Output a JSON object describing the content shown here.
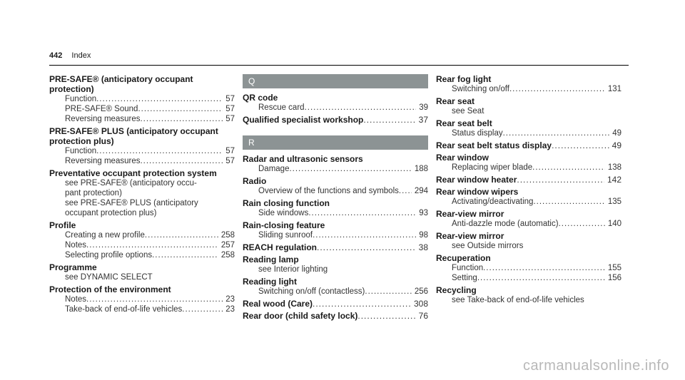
{
  "header": {
    "page_number": "442",
    "section": "Index"
  },
  "col1": {
    "e1_title": "PRE-SAFE® (anticipatory occupant protection)",
    "e1_r1": "Function",
    "e1_p1": "57",
    "e1_r2": "PRE-SAFE® Sound",
    "e1_p2": "57",
    "e1_r3": "Reversing measures",
    "e1_p3": "57",
    "e2_title1": "PRE-SAFE® PLUS (anticipatory occupant",
    "e2_title2": "protection plus)",
    "e2_r1": "Function",
    "e2_p1": "57",
    "e2_r2": "Reversing measures",
    "e2_p2": "57",
    "e3_title": "Preventative occupant protection system",
    "e3_s1": "see PRE-SAFE® (anticipatory occu-",
    "e3_s2": "pant protection)",
    "e3_s3": "see PRE-SAFE® PLUS (anticipatory",
    "e3_s4": "occupant protection plus)",
    "e4_title": "Profile",
    "e4_r1": "Creating a new profile",
    "e4_p1": "258",
    "e4_r2": "Notes",
    "e4_p2": "257",
    "e4_r3": "Selecting profile options",
    "e4_p3": "258",
    "e5_title": "Programme",
    "e5_s1": "see DYNAMIC SELECT",
    "e6_title": "Protection of the environment",
    "e6_r1": "Notes",
    "e6_p1": "23",
    "e6_r2": "Take-back of end-of-life vehicles",
    "e6_p2": "23"
  },
  "col2": {
    "letter_q": "Q",
    "q1_title": "QR code",
    "q1_r1": "Rescue card",
    "q1_p1": "39",
    "q2_title": "Qualified specialist workshop",
    "q2_p": "37",
    "letter_r": "R",
    "r1_title": "Radar and ultrasonic sensors",
    "r1_r1": "Damage",
    "r1_p1": "188",
    "r2_title": "Radio",
    "r2_r1": "Overview of the functions and symbols",
    "r2_p1": "294",
    "r3_title": "Rain closing function",
    "r3_r1": "Side windows",
    "r3_p1": "93",
    "r4_title": "Rain-closing feature",
    "r4_r1": "Sliding sunroof",
    "r4_p1": "98",
    "r5_title": "REACH regulation",
    "r5_p": "38",
    "r6_title": "Reading lamp",
    "r6_s1": "see Interior lighting",
    "r7_title": "Reading light",
    "r7_r1": "Switching on/off (contactless)",
    "r7_p1": "256",
    "r8_title": "Real wood (Care)",
    "r8_p": "308",
    "r9_title": "Rear door (child safety lock)",
    "r9_p": "76"
  },
  "col3": {
    "a1_title": "Rear fog light",
    "a1_r1": "Switching on/off",
    "a1_p1": "131",
    "a2_title": "Rear seat",
    "a2_s1": "see Seat",
    "a3_title": "Rear seat belt",
    "a3_r1": "Status display",
    "a3_p1": "49",
    "a4_title": "Rear seat belt status display",
    "a4_p": "49",
    "a5_title": "Rear window",
    "a5_r1": "Replacing wiper blade",
    "a5_p1": "138",
    "a6_title": "Rear window heater",
    "a6_p": "142",
    "a7_title": "Rear window wipers",
    "a7_r1": "Activating/deactivating",
    "a7_p1": "135",
    "a8_title": "Rear-view mirror",
    "a8_r1": "Anti-dazzle mode (automatic)",
    "a8_p1": "140",
    "a9_title": "Rear-view mirror",
    "a9_s1": "see Outside mirrors",
    "a10_title": "Recuperation",
    "a10_r1": "Function",
    "a10_p1": "155",
    "a10_r2": "Setting",
    "a10_p2": "156",
    "a11_title": "Recycling",
    "a11_s1": "see Take-back of end-of-life vehicles"
  },
  "watermark": "carmanualsonline.info"
}
